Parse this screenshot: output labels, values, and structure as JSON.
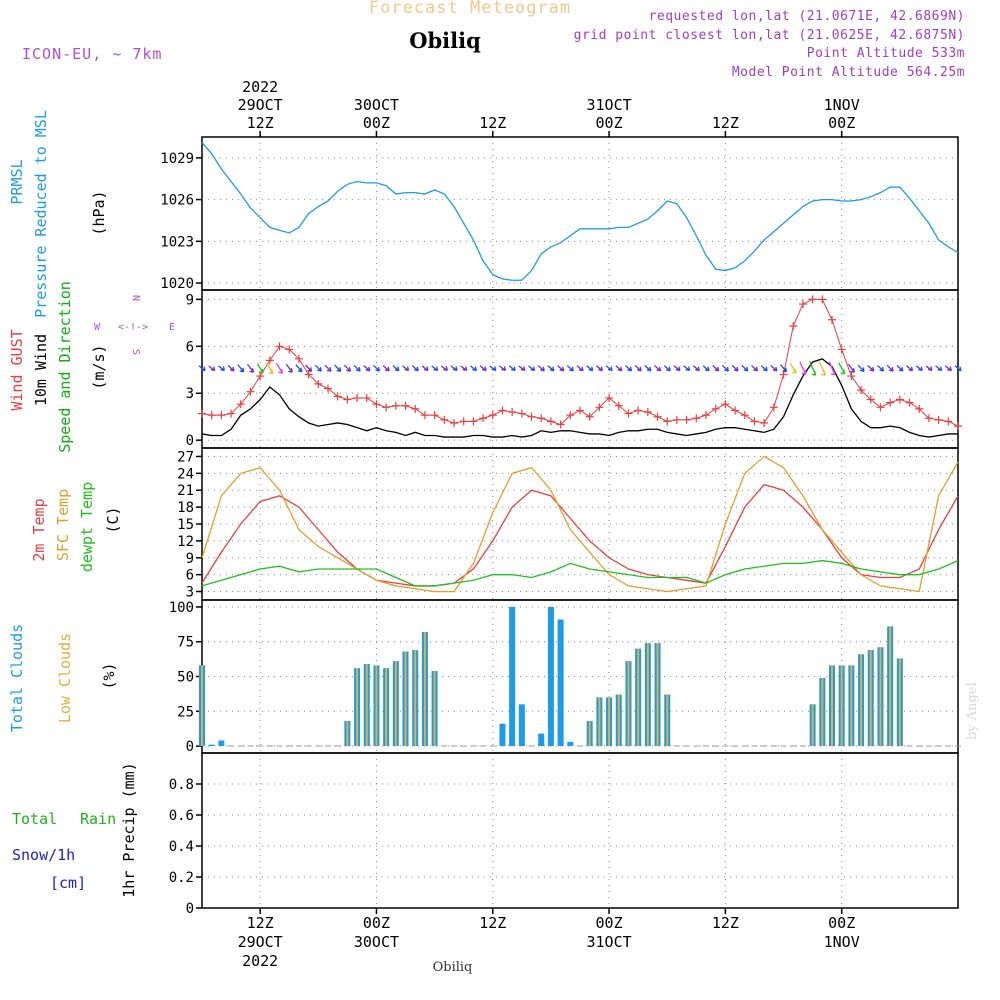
{
  "header": {
    "title": "Forecast Meteogram",
    "station": "Obiliq",
    "model": "ICON-EU, ~ 7km",
    "requested": "requested lon,lat (21.0671E, 42.6869N)",
    "gridpoint": "grid point closest lon,lat (21.0625E, 42.6875N)",
    "point_alt": "Point Altitude 533m",
    "model_alt": "Model Point Altitude 564.25m",
    "watermark": "by Angel",
    "bottom_name": "Obiliq"
  },
  "colors": {
    "title": "#f0c890",
    "model": "#b050d0",
    "info": "#a040c0",
    "pressure": "#1e9be8",
    "gust": "#e84040",
    "wind": "#000000",
    "direction": "#10b010",
    "temp": "#e84040",
    "sfc": "#e0a030",
    "dewpt": "#20c020",
    "total_clouds": "#1e9be8",
    "low_clouds": "#e0b040",
    "rain": "#20b020",
    "snow": "#2020d0",
    "compass": "#b050d0"
  },
  "time_axis": {
    "top_year": "2022",
    "bottom_year": "2022",
    "ticks": [
      {
        "hour": 12,
        "time": "12Z",
        "date": "29OCT"
      },
      {
        "hour": 24,
        "time": "00Z",
        "date": "30OCT"
      },
      {
        "hour": 36,
        "time": "12Z",
        "date": ""
      },
      {
        "hour": 48,
        "time": "00Z",
        "date": "31OCT"
      },
      {
        "hour": 60,
        "time": "12Z",
        "date": ""
      },
      {
        "hour": 72,
        "time": "00Z",
        "date": "1NOV"
      }
    ]
  },
  "panel_labels": {
    "pressure": [
      "PRMSL",
      "Pressure Reduced to MSL"
    ],
    "pressure_unit": "(hPa)",
    "wind": [
      "Wind GUST",
      "10m Wind",
      "Speed and Direction"
    ],
    "wind_unit": "(m/s)",
    "compass": {
      "n": "N",
      "s": "S",
      "w": "W",
      "e": "E",
      "arrows": "<-!->"
    },
    "temp": [
      "2m Temp",
      "SFC Temp",
      "dewpt Temp"
    ],
    "temp_unit": "(C)",
    "clouds": [
      "Total Clouds",
      "Low Clouds"
    ],
    "clouds_unit": "(%)",
    "rain_left": [
      "Total",
      "Rain"
    ],
    "snow_left": [
      "Snow/1h",
      "[cm]"
    ],
    "precip_unit": "1hr Precip (mm)"
  },
  "chart_data": [
    {
      "type": "line",
      "name": "pressure",
      "ylabel": "(hPa)",
      "ylim": [
        1019.5,
        1030.5
      ],
      "yticks": [
        1020,
        1023,
        1026,
        1029
      ],
      "x": [
        6,
        7,
        8,
        9,
        10,
        11,
        12,
        13,
        14,
        15,
        16,
        17,
        18,
        19,
        20,
        21,
        22,
        23,
        24,
        25,
        26,
        27,
        28,
        29,
        30,
        31,
        32,
        33,
        34,
        35,
        36,
        37,
        38,
        39,
        40,
        41,
        42,
        43,
        44,
        45,
        46,
        47,
        48,
        49,
        50,
        51,
        52,
        53,
        54,
        55,
        56,
        57,
        58,
        59,
        60,
        61,
        62,
        63,
        64,
        65,
        66,
        67,
        68,
        69,
        70,
        71,
        72,
        73,
        74,
        75,
        76,
        77,
        78,
        79,
        80,
        81,
        82,
        83,
        84
      ],
      "series": [
        {
          "name": "PRMSL",
          "values": [
            1030.1,
            1029.3,
            1028.2,
            1027.3,
            1026.4,
            1025.4,
            1024.7,
            1024.0,
            1023.8,
            1023.6,
            1024.0,
            1025.0,
            1025.5,
            1025.9,
            1026.6,
            1027.1,
            1027.3,
            1027.2,
            1027.2,
            1027.0,
            1026.4,
            1026.5,
            1026.5,
            1026.4,
            1026.7,
            1026.4,
            1025.5,
            1024.3,
            1023.1,
            1021.6,
            1020.6,
            1020.3,
            1020.2,
            1020.2,
            1020.9,
            1022.1,
            1022.6,
            1022.9,
            1023.4,
            1023.9,
            1023.9,
            1023.9,
            1023.9,
            1024.0,
            1024.0,
            1024.3,
            1024.6,
            1025.2,
            1025.9,
            1025.7,
            1024.7,
            1023.4,
            1022.0,
            1021.0,
            1020.9,
            1021.1,
            1021.6,
            1022.3,
            1023.1,
            1023.7,
            1024.3,
            1024.9,
            1025.5,
            1025.9,
            1026.0,
            1026.0,
            1025.9,
            1025.9,
            1026.0,
            1026.2,
            1026.5,
            1026.9,
            1026.9,
            1026.1,
            1025.2,
            1024.3,
            1023.1,
            1022.6,
            1022.2
          ]
        }
      ]
    },
    {
      "type": "line",
      "name": "wind",
      "ylabel": "(m/s)",
      "ylim": [
        -0.5,
        9.6
      ],
      "yticks": [
        0,
        3,
        6,
        9
      ],
      "x": [
        6,
        7,
        8,
        9,
        10,
        11,
        12,
        13,
        14,
        15,
        16,
        17,
        18,
        19,
        20,
        21,
        22,
        23,
        24,
        25,
        26,
        27,
        28,
        29,
        30,
        31,
        32,
        33,
        34,
        35,
        36,
        37,
        38,
        39,
        40,
        41,
        42,
        43,
        44,
        45,
        46,
        47,
        48,
        49,
        50,
        51,
        52,
        53,
        54,
        55,
        56,
        57,
        58,
        59,
        60,
        61,
        62,
        63,
        64,
        65,
        66,
        67,
        68,
        69,
        70,
        71,
        72,
        73,
        74,
        75,
        76,
        77,
        78,
        79,
        80,
        81,
        82,
        83,
        84
      ],
      "series": [
        {
          "name": "Wind GUST",
          "values": [
            1.7,
            1.6,
            1.6,
            1.7,
            2.3,
            3.1,
            4.1,
            5.1,
            6.0,
            5.8,
            5.2,
            4.2,
            3.6,
            3.3,
            2.8,
            2.6,
            2.7,
            2.7,
            2.3,
            2.1,
            2.2,
            2.2,
            2.0,
            1.6,
            1.6,
            1.3,
            1.1,
            1.2,
            1.2,
            1.4,
            1.6,
            1.9,
            1.8,
            1.7,
            1.5,
            1.4,
            1.2,
            1.0,
            1.6,
            1.9,
            1.5,
            2.1,
            2.7,
            2.2,
            1.7,
            1.9,
            1.8,
            1.5,
            1.2,
            1.3,
            1.3,
            1.4,
            1.6,
            2.0,
            2.3,
            1.9,
            1.6,
            1.2,
            1.1,
            2.1,
            4.2,
            7.3,
            8.7,
            9.0,
            9.0,
            7.7,
            5.8,
            4.1,
            3.2,
            2.6,
            2.1,
            2.4,
            2.6,
            2.4,
            2.0,
            1.4,
            1.3,
            1.2,
            0.9
          ]
        },
        {
          "name": "10m Wind",
          "values": [
            0.4,
            0.3,
            0.3,
            0.7,
            1.6,
            2.0,
            2.6,
            3.4,
            2.9,
            2.0,
            1.5,
            1.1,
            0.9,
            1.0,
            1.1,
            1.0,
            0.8,
            0.6,
            0.8,
            0.6,
            0.5,
            0.3,
            0.5,
            0.3,
            0.3,
            0.2,
            0.2,
            0.2,
            0.3,
            0.3,
            0.2,
            0.2,
            0.3,
            0.2,
            0.3,
            0.6,
            0.5,
            0.6,
            0.6,
            0.5,
            0.4,
            0.4,
            0.3,
            0.5,
            0.6,
            0.6,
            0.7,
            0.7,
            0.5,
            0.4,
            0.3,
            0.4,
            0.5,
            0.7,
            0.8,
            0.8,
            0.7,
            0.6,
            0.5,
            0.7,
            1.5,
            2.9,
            4.1,
            5.0,
            5.2,
            4.7,
            3.5,
            2.0,
            1.2,
            0.8,
            0.8,
            0.9,
            0.8,
            0.5,
            0.3,
            0.2,
            0.3,
            0.4,
            0.4
          ]
        }
      ]
    },
    {
      "type": "line",
      "name": "temperature",
      "ylabel": "(C)",
      "ylim": [
        1.5,
        28.5
      ],
      "yticks": [
        3,
        6,
        9,
        12,
        15,
        18,
        21,
        24,
        27
      ],
      "x": [
        6,
        8,
        10,
        12,
        14,
        16,
        18,
        20,
        22,
        24,
        26,
        28,
        30,
        32,
        34,
        36,
        38,
        40,
        42,
        44,
        46,
        48,
        50,
        52,
        54,
        56,
        58,
        60,
        62,
        64,
        66,
        68,
        70,
        72,
        74,
        76,
        78,
        80,
        82,
        84
      ],
      "series": [
        {
          "name": "2m Temp",
          "values": [
            4.5,
            10,
            15,
            19,
            20,
            18,
            14,
            10,
            7,
            5,
            4.5,
            4,
            4,
            4.5,
            7,
            12,
            18,
            21,
            20,
            16,
            12,
            9,
            7,
            6,
            5.5,
            5,
            4.5,
            11,
            18,
            22,
            21,
            18,
            14,
            9,
            6,
            5.5,
            5.5,
            7,
            14,
            20
          ]
        },
        {
          "name": "SFC Temp",
          "values": [
            9,
            20,
            24,
            25,
            21,
            14,
            11,
            9,
            7,
            5,
            4,
            3.5,
            3,
            3,
            8,
            17,
            24,
            25,
            21,
            14,
            10,
            6,
            4,
            3.5,
            3,
            3.5,
            4,
            15,
            24,
            27,
            25,
            20,
            14,
            10,
            6,
            4,
            3.5,
            3,
            20,
            26
          ]
        },
        {
          "name": "dewpt Temp",
          "values": [
            4,
            5,
            6,
            7,
            7.5,
            6.5,
            7,
            7,
            7,
            7,
            5.5,
            4,
            4,
            4.5,
            5,
            6,
            6,
            5.5,
            6.5,
            8,
            7,
            6.5,
            6,
            5.5,
            5.5,
            5.5,
            4.5,
            6,
            7,
            7.5,
            8,
            8,
            8.5,
            8,
            7,
            6.5,
            6,
            6,
            7,
            8.5
          ]
        }
      ]
    },
    {
      "type": "bar",
      "name": "clouds",
      "ylabel": "(%)",
      "ylim": [
        -5,
        105
      ],
      "yticks": [
        0,
        25,
        50,
        75,
        100
      ],
      "x": [
        6,
        7,
        8,
        9,
        10,
        11,
        12,
        13,
        14,
        15,
        16,
        17,
        18,
        19,
        20,
        21,
        22,
        23,
        24,
        25,
        26,
        27,
        28,
        29,
        30,
        31,
        32,
        33,
        34,
        35,
        36,
        37,
        38,
        39,
        40,
        41,
        42,
        43,
        44,
        45,
        46,
        47,
        48,
        49,
        50,
        51,
        52,
        53,
        54,
        55,
        56,
        57,
        58,
        59,
        60,
        61,
        62,
        63,
        64,
        65,
        66,
        67,
        68,
        69,
        70,
        71,
        72,
        73,
        74,
        75,
        76,
        77,
        78,
        79,
        80,
        81,
        82,
        83,
        84
      ],
      "series": [
        {
          "name": "Total Clouds",
          "values": [
            58,
            1,
            4,
            0,
            0,
            0,
            0,
            0,
            0,
            0,
            0,
            0,
            0,
            0,
            0,
            18,
            56,
            59,
            58,
            56,
            61,
            68,
            69,
            82,
            54,
            0,
            0,
            0,
            0,
            0,
            0,
            16,
            100,
            30,
            0,
            9,
            100,
            91,
            3,
            0,
            18,
            35,
            35,
            37,
            61,
            70,
            74,
            74,
            37,
            0,
            0,
            0,
            0,
            0,
            0,
            0,
            0,
            0,
            0,
            0,
            0,
            0,
            0,
            30,
            49,
            58,
            58,
            58,
            66,
            69,
            71,
            86,
            63,
            0,
            0,
            0,
            0,
            0,
            0
          ]
        },
        {
          "name": "Low Clouds",
          "values": [
            58,
            0,
            0,
            0,
            0,
            0,
            0,
            0,
            0,
            0,
            0,
            0,
            0,
            0,
            0,
            18,
            56,
            59,
            58,
            56,
            61,
            68,
            69,
            82,
            54,
            0,
            0,
            0,
            0,
            0,
            0,
            0,
            0,
            0,
            0,
            0,
            0,
            0,
            0,
            0,
            18,
            35,
            35,
            37,
            61,
            70,
            74,
            74,
            37,
            0,
            0,
            0,
            0,
            0,
            0,
            0,
            0,
            0,
            0,
            0,
            0,
            0,
            0,
            30,
            49,
            58,
            58,
            58,
            66,
            69,
            71,
            86,
            63,
            0,
            0,
            0,
            0,
            0,
            0
          ]
        }
      ]
    },
    {
      "type": "bar",
      "name": "precipitation",
      "ylabel": "1hr Precip (mm)",
      "ylim": [
        0,
        1
      ],
      "yticks": [
        0,
        0.2,
        0.4,
        0.6,
        0.8
      ],
      "ytick_labels": [
        "0",
        "0.2",
        "0.4",
        "0.6",
        "0.8"
      ],
      "series": [
        {
          "name": "Rain",
          "values": []
        },
        {
          "name": "Snow/1h",
          "values": []
        }
      ]
    }
  ]
}
